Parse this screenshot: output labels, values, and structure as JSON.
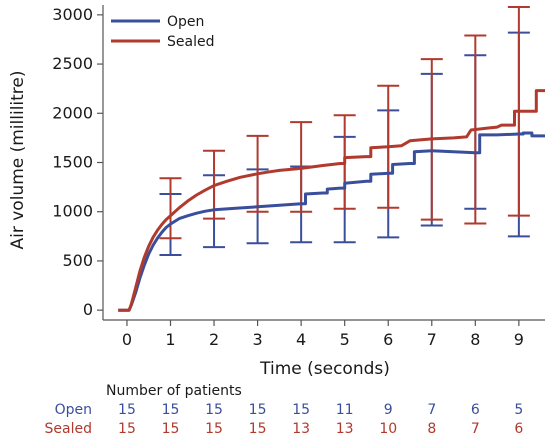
{
  "chart_data": {
    "type": "line",
    "xlabel": "Time (seconds)",
    "ylabel": "Air volume (millilitre)",
    "xlim": [
      -0.55,
      9.6
    ],
    "ylim": [
      -100,
      3100
    ],
    "x_ticks": [
      "0",
      "1",
      "2",
      "3",
      "4",
      "5",
      "6",
      "7",
      "8",
      "9"
    ],
    "y_ticks": [
      "0",
      "500",
      "1000",
      "1500",
      "2000",
      "2500",
      "3000"
    ],
    "legend_position": "top-left",
    "grid": false,
    "series": [
      {
        "name": "Open",
        "color": "#3a4f9c",
        "points": [
          [
            -0.2,
            0
          ],
          [
            0.05,
            0
          ],
          [
            0.1,
            50
          ],
          [
            0.2,
            180
          ],
          [
            0.3,
            330
          ],
          [
            0.4,
            460
          ],
          [
            0.5,
            570
          ],
          [
            0.6,
            660
          ],
          [
            0.7,
            730
          ],
          [
            0.8,
            790
          ],
          [
            0.9,
            840
          ],
          [
            1.0,
            875
          ],
          [
            1.2,
            930
          ],
          [
            1.4,
            960
          ],
          [
            1.6,
            985
          ],
          [
            1.8,
            1005
          ],
          [
            2.0,
            1020
          ],
          [
            2.5,
            1035
          ],
          [
            3.0,
            1050
          ],
          [
            3.5,
            1065
          ],
          [
            4.0,
            1080
          ],
          [
            4.1,
            1080
          ],
          [
            4.1,
            1180
          ],
          [
            4.5,
            1190
          ],
          [
            4.6,
            1190
          ],
          [
            4.6,
            1230
          ],
          [
            4.9,
            1240
          ],
          [
            5.0,
            1240
          ],
          [
            5.0,
            1290
          ],
          [
            5.5,
            1310
          ],
          [
            5.6,
            1310
          ],
          [
            5.6,
            1380
          ],
          [
            6.0,
            1390
          ],
          [
            6.1,
            1390
          ],
          [
            6.1,
            1480
          ],
          [
            6.5,
            1490
          ],
          [
            6.6,
            1490
          ],
          [
            6.6,
            1610
          ],
          [
            7.0,
            1620
          ],
          [
            7.5,
            1610
          ],
          [
            8.0,
            1600
          ],
          [
            8.1,
            1600
          ],
          [
            8.1,
            1780
          ],
          [
            8.5,
            1780
          ],
          [
            9.0,
            1790
          ],
          [
            9.1,
            1790
          ],
          [
            9.1,
            1800
          ],
          [
            9.3,
            1800
          ],
          [
            9.3,
            1770
          ],
          [
            9.6,
            1770
          ]
        ],
        "error_bars": [
          {
            "x": 1,
            "low": 560,
            "high": 1180
          },
          {
            "x": 2,
            "low": 640,
            "high": 1370
          },
          {
            "x": 3,
            "low": 680,
            "high": 1430
          },
          {
            "x": 4,
            "low": 690,
            "high": 1460
          },
          {
            "x": 5,
            "low": 690,
            "high": 1760
          },
          {
            "x": 6,
            "low": 740,
            "high": 2030
          },
          {
            "x": 7,
            "low": 860,
            "high": 2400
          },
          {
            "x": 8,
            "low": 1030,
            "high": 2590
          },
          {
            "x": 9,
            "low": 750,
            "high": 2820
          }
        ]
      },
      {
        "name": "Sealed",
        "color": "#b03a2e",
        "points": [
          [
            -0.2,
            0
          ],
          [
            0.05,
            0
          ],
          [
            0.1,
            60
          ],
          [
            0.2,
            230
          ],
          [
            0.3,
            400
          ],
          [
            0.4,
            540
          ],
          [
            0.5,
            650
          ],
          [
            0.6,
            740
          ],
          [
            0.7,
            810
          ],
          [
            0.8,
            870
          ],
          [
            0.9,
            920
          ],
          [
            1.0,
            960
          ],
          [
            1.2,
            1040
          ],
          [
            1.4,
            1110
          ],
          [
            1.6,
            1170
          ],
          [
            1.8,
            1220
          ],
          [
            2.0,
            1265
          ],
          [
            2.3,
            1310
          ],
          [
            2.6,
            1350
          ],
          [
            3.0,
            1385
          ],
          [
            3.2,
            1400
          ],
          [
            3.5,
            1420
          ],
          [
            4.0,
            1440
          ],
          [
            4.5,
            1470
          ],
          [
            4.9,
            1490
          ],
          [
            5.0,
            1490
          ],
          [
            5.0,
            1550
          ],
          [
            5.5,
            1560
          ],
          [
            5.6,
            1560
          ],
          [
            5.6,
            1650
          ],
          [
            6.0,
            1660
          ],
          [
            6.3,
            1670
          ],
          [
            6.5,
            1720
          ],
          [
            7.0,
            1740
          ],
          [
            7.5,
            1750
          ],
          [
            7.8,
            1760
          ],
          [
            7.9,
            1830
          ],
          [
            8.3,
            1850
          ],
          [
            8.5,
            1860
          ],
          [
            8.6,
            1880
          ],
          [
            8.9,
            1880
          ],
          [
            8.9,
            2020
          ],
          [
            9.4,
            2020
          ],
          [
            9.4,
            2230
          ],
          [
            9.6,
            2230
          ]
        ],
        "error_bars": [
          {
            "x": 1,
            "low": 730,
            "high": 1340
          },
          {
            "x": 2,
            "low": 930,
            "high": 1620
          },
          {
            "x": 3,
            "low": 1000,
            "high": 1770
          },
          {
            "x": 4,
            "low": 1000,
            "high": 1910
          },
          {
            "x": 5,
            "low": 1030,
            "high": 1980
          },
          {
            "x": 6,
            "low": 1040,
            "high": 2280
          },
          {
            "x": 7,
            "low": 920,
            "high": 2550
          },
          {
            "x": 8,
            "low": 880,
            "high": 2790
          },
          {
            "x": 9,
            "low": 960,
            "high": 3080
          }
        ]
      }
    ],
    "risk_table": {
      "title": "Number of patients",
      "rows": [
        {
          "label": "Open",
          "color": "#3a4f9c",
          "values": [
            "15",
            "15",
            "15",
            "15",
            "15",
            "11",
            "9",
            "7",
            "6",
            "5"
          ]
        },
        {
          "label": "Sealed",
          "color": "#b03a2e",
          "values": [
            "15",
            "15",
            "15",
            "15",
            "13",
            "13",
            "10",
            "8",
            "7",
            "6"
          ]
        }
      ]
    }
  }
}
